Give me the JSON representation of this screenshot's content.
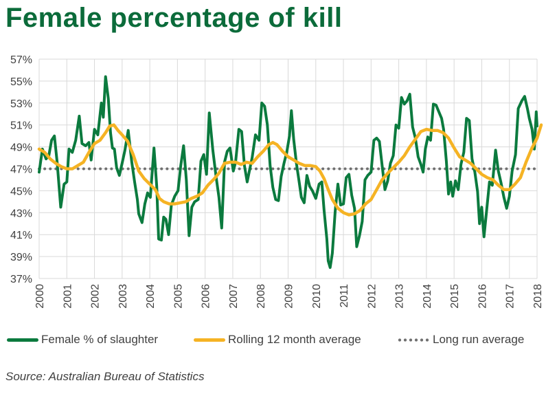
{
  "chart_data": {
    "type": "line",
    "title": "Female percentage of kill",
    "source": "Source: Australian Bureau of Statistics",
    "y_tick_labels": [
      "37%",
      "39%",
      "41%",
      "43%",
      "45%",
      "47%",
      "49%",
      "51%",
      "53%",
      "55%",
      "57%"
    ],
    "y_ticks": [
      37,
      39,
      41,
      43,
      45,
      47,
      49,
      51,
      53,
      55,
      57
    ],
    "x_tick_labels": [
      "2000",
      "2001",
      "2002",
      "2003",
      "2004",
      "2005",
      "2006",
      "2007",
      "2008",
      "2009",
      "2010",
      "2011",
      "2012",
      "2013",
      "2014",
      "2015",
      "2016",
      "2017",
      "2018"
    ],
    "x_ticks": [
      2000,
      2001,
      2002,
      2003,
      2004,
      2005,
      2006,
      2007,
      2008,
      2009,
      2010,
      2011,
      2012,
      2013,
      2014,
      2015,
      2016,
      2017,
      2018
    ],
    "ylim": [
      37,
      57
    ],
    "xlim": [
      2000,
      2018
    ],
    "grid": true,
    "legend_position": "bottom",
    "series": [
      {
        "name": "Female % of slaughter",
        "color": "#0b7a3e",
        "style": "solid",
        "points": [
          [
            2000.0,
            46.7
          ],
          [
            2000.12,
            48.8
          ],
          [
            2000.25,
            47.9
          ],
          [
            2000.35,
            48.2
          ],
          [
            2000.45,
            49.6
          ],
          [
            2000.55,
            50.0
          ],
          [
            2000.65,
            47.6
          ],
          [
            2000.78,
            43.5
          ],
          [
            2000.9,
            45.6
          ],
          [
            2001.0,
            45.8
          ],
          [
            2001.08,
            48.8
          ],
          [
            2001.2,
            48.5
          ],
          [
            2001.32,
            49.6
          ],
          [
            2001.45,
            51.8
          ],
          [
            2001.55,
            49.3
          ],
          [
            2001.68,
            49.1
          ],
          [
            2001.8,
            49.4
          ],
          [
            2001.88,
            47.8
          ],
          [
            2002.0,
            50.6
          ],
          [
            2002.12,
            50.1
          ],
          [
            2002.25,
            53.0
          ],
          [
            2002.32,
            51.7
          ],
          [
            2002.4,
            55.4
          ],
          [
            2002.5,
            53.4
          ],
          [
            2002.58,
            50.3
          ],
          [
            2002.65,
            48.9
          ],
          [
            2002.72,
            48.8
          ],
          [
            2002.8,
            47.1
          ],
          [
            2002.9,
            46.4
          ],
          [
            2003.0,
            47.5
          ],
          [
            2003.1,
            48.7
          ],
          [
            2003.22,
            50.5
          ],
          [
            2003.35,
            47.6
          ],
          [
            2003.45,
            45.8
          ],
          [
            2003.55,
            44.2
          ],
          [
            2003.6,
            42.9
          ],
          [
            2003.72,
            42.1
          ],
          [
            2003.82,
            43.8
          ],
          [
            2003.92,
            44.8
          ],
          [
            2004.02,
            44.4
          ],
          [
            2004.15,
            48.9
          ],
          [
            2004.25,
            45.4
          ],
          [
            2004.32,
            40.6
          ],
          [
            2004.42,
            40.5
          ],
          [
            2004.5,
            42.6
          ],
          [
            2004.58,
            42.4
          ],
          [
            2004.68,
            41.0
          ],
          [
            2004.78,
            43.7
          ],
          [
            2004.9,
            44.5
          ],
          [
            2005.02,
            45.0
          ],
          [
            2005.12,
            47.3
          ],
          [
            2005.22,
            49.1
          ],
          [
            2005.32,
            46.0
          ],
          [
            2005.42,
            40.9
          ],
          [
            2005.52,
            43.5
          ],
          [
            2005.62,
            44.0
          ],
          [
            2005.75,
            44.2
          ],
          [
            2005.85,
            47.7
          ],
          [
            2005.95,
            48.3
          ],
          [
            2006.05,
            46.5
          ],
          [
            2006.15,
            52.1
          ],
          [
            2006.28,
            48.7
          ],
          [
            2006.4,
            46.2
          ],
          [
            2006.5,
            44.4
          ],
          [
            2006.6,
            41.6
          ],
          [
            2006.7,
            47.6
          ],
          [
            2006.8,
            48.6
          ],
          [
            2006.9,
            48.9
          ],
          [
            2007.02,
            46.8
          ],
          [
            2007.1,
            47.6
          ],
          [
            2007.22,
            50.6
          ],
          [
            2007.32,
            50.4
          ],
          [
            2007.42,
            47.3
          ],
          [
            2007.52,
            45.8
          ],
          [
            2007.6,
            46.8
          ],
          [
            2007.7,
            48.0
          ],
          [
            2007.82,
            50.1
          ],
          [
            2007.95,
            49.6
          ],
          [
            2008.05,
            53.0
          ],
          [
            2008.15,
            52.7
          ],
          [
            2008.25,
            51.0
          ],
          [
            2008.35,
            47.3
          ],
          [
            2008.45,
            45.3
          ],
          [
            2008.55,
            44.2
          ],
          [
            2008.65,
            44.1
          ],
          [
            2008.75,
            46.3
          ],
          [
            2008.85,
            47.5
          ],
          [
            2008.95,
            48.5
          ],
          [
            2009.05,
            50.0
          ],
          [
            2009.12,
            52.3
          ],
          [
            2009.2,
            49.7
          ],
          [
            2009.3,
            47.5
          ],
          [
            2009.4,
            45.8
          ],
          [
            2009.48,
            44.4
          ],
          [
            2009.58,
            43.9
          ],
          [
            2009.68,
            46.4
          ],
          [
            2009.78,
            45.4
          ],
          [
            2009.88,
            45.0
          ],
          [
            2010.0,
            44.3
          ],
          [
            2010.12,
            45.6
          ],
          [
            2010.22,
            45.8
          ],
          [
            2010.3,
            43.2
          ],
          [
            2010.4,
            40.6
          ],
          [
            2010.45,
            38.6
          ],
          [
            2010.52,
            38.0
          ],
          [
            2010.6,
            39.3
          ],
          [
            2010.7,
            43.1
          ],
          [
            2010.8,
            45.6
          ],
          [
            2010.9,
            43.7
          ],
          [
            2011.0,
            43.8
          ],
          [
            2011.1,
            46.2
          ],
          [
            2011.2,
            46.5
          ],
          [
            2011.3,
            44.6
          ],
          [
            2011.4,
            43.4
          ],
          [
            2011.48,
            39.9
          ],
          [
            2011.58,
            40.9
          ],
          [
            2011.68,
            42.2
          ],
          [
            2011.78,
            46.0
          ],
          [
            2011.88,
            46.4
          ],
          [
            2012.0,
            46.7
          ],
          [
            2012.1,
            49.6
          ],
          [
            2012.2,
            49.8
          ],
          [
            2012.3,
            49.5
          ],
          [
            2012.4,
            47.3
          ],
          [
            2012.5,
            45.1
          ],
          [
            2012.6,
            45.9
          ],
          [
            2012.7,
            47.5
          ],
          [
            2012.8,
            48.2
          ],
          [
            2012.9,
            51.0
          ],
          [
            2013.0,
            50.7
          ],
          [
            2013.1,
            53.5
          ],
          [
            2013.2,
            52.9
          ],
          [
            2013.3,
            53.2
          ],
          [
            2013.4,
            53.8
          ],
          [
            2013.5,
            50.8
          ],
          [
            2013.6,
            49.8
          ],
          [
            2013.7,
            48.1
          ],
          [
            2013.8,
            47.4
          ],
          [
            2013.88,
            46.7
          ],
          [
            2013.96,
            48.8
          ],
          [
            2014.05,
            49.9
          ],
          [
            2014.15,
            49.6
          ],
          [
            2014.25,
            52.9
          ],
          [
            2014.35,
            52.8
          ],
          [
            2014.45,
            52.2
          ],
          [
            2014.55,
            51.6
          ],
          [
            2014.62,
            50.6
          ],
          [
            2014.72,
            47.7
          ],
          [
            2014.8,
            44.7
          ],
          [
            2014.88,
            45.8
          ],
          [
            2014.95,
            44.5
          ],
          [
            2015.05,
            45.9
          ],
          [
            2015.15,
            45.1
          ],
          [
            2015.25,
            47.4
          ],
          [
            2015.35,
            48.5
          ],
          [
            2015.45,
            51.6
          ],
          [
            2015.55,
            51.4
          ],
          [
            2015.65,
            47.9
          ],
          [
            2015.75,
            46.7
          ],
          [
            2015.85,
            44.9
          ],
          [
            2015.92,
            42.0
          ],
          [
            2016.0,
            43.5
          ],
          [
            2016.08,
            40.8
          ],
          [
            2016.18,
            43.3
          ],
          [
            2016.28,
            45.8
          ],
          [
            2016.38,
            45.5
          ],
          [
            2016.5,
            48.7
          ],
          [
            2016.6,
            46.8
          ],
          [
            2016.7,
            45.7
          ],
          [
            2016.8,
            44.4
          ],
          [
            2016.9,
            43.4
          ],
          [
            2017.0,
            44.5
          ],
          [
            2017.1,
            46.8
          ],
          [
            2017.22,
            48.3
          ],
          [
            2017.32,
            52.5
          ],
          [
            2017.45,
            53.2
          ],
          [
            2017.55,
            53.6
          ],
          [
            2017.65,
            52.5
          ],
          [
            2017.72,
            51.6
          ],
          [
            2017.82,
            50.6
          ],
          [
            2017.9,
            48.8
          ],
          [
            2017.97,
            52.2
          ],
          [
            2018.0,
            50.9
          ]
        ]
      },
      {
        "name": "Rolling 12 month average",
        "color": "#f5b324",
        "style": "solid",
        "points": [
          [
            2000.0,
            48.8
          ],
          [
            2000.2,
            48.5
          ],
          [
            2000.4,
            47.9
          ],
          [
            2000.6,
            47.5
          ],
          [
            2000.8,
            47.2
          ],
          [
            2001.0,
            47.0
          ],
          [
            2001.2,
            47.0
          ],
          [
            2001.4,
            47.3
          ],
          [
            2001.6,
            47.6
          ],
          [
            2001.8,
            48.5
          ],
          [
            2002.0,
            49.3
          ],
          [
            2002.2,
            49.6
          ],
          [
            2002.4,
            50.3
          ],
          [
            2002.55,
            50.9
          ],
          [
            2002.7,
            51.0
          ],
          [
            2002.85,
            50.5
          ],
          [
            2003.0,
            50.1
          ],
          [
            2003.2,
            49.5
          ],
          [
            2003.4,
            48.3
          ],
          [
            2003.6,
            46.8
          ],
          [
            2003.8,
            46.1
          ],
          [
            2004.0,
            45.6
          ],
          [
            2004.2,
            45.1
          ],
          [
            2004.35,
            44.3
          ],
          [
            2004.5,
            44.0
          ],
          [
            2004.7,
            43.8
          ],
          [
            2004.9,
            43.8
          ],
          [
            2005.1,
            43.9
          ],
          [
            2005.3,
            44.0
          ],
          [
            2005.5,
            44.3
          ],
          [
            2005.7,
            44.5
          ],
          [
            2005.9,
            44.8
          ],
          [
            2006.1,
            45.5
          ],
          [
            2006.3,
            46.0
          ],
          [
            2006.5,
            46.6
          ],
          [
            2006.7,
            47.5
          ],
          [
            2006.9,
            47.6
          ],
          [
            2007.1,
            47.6
          ],
          [
            2007.3,
            47.4
          ],
          [
            2007.5,
            47.6
          ],
          [
            2007.7,
            47.5
          ],
          [
            2007.9,
            48.1
          ],
          [
            2008.1,
            48.6
          ],
          [
            2008.3,
            49.2
          ],
          [
            2008.45,
            49.4
          ],
          [
            2008.6,
            49.2
          ],
          [
            2008.8,
            48.6
          ],
          [
            2009.0,
            48.1
          ],
          [
            2009.2,
            47.8
          ],
          [
            2009.4,
            47.5
          ],
          [
            2009.6,
            47.3
          ],
          [
            2009.8,
            47.3
          ],
          [
            2010.0,
            47.2
          ],
          [
            2010.15,
            46.8
          ],
          [
            2010.3,
            46.1
          ],
          [
            2010.45,
            45.1
          ],
          [
            2010.6,
            44.2
          ],
          [
            2010.8,
            43.4
          ],
          [
            2011.0,
            43.0
          ],
          [
            2011.2,
            42.8
          ],
          [
            2011.4,
            42.9
          ],
          [
            2011.6,
            43.2
          ],
          [
            2011.8,
            43.8
          ],
          [
            2012.0,
            44.2
          ],
          [
            2012.2,
            45.1
          ],
          [
            2012.4,
            46.0
          ],
          [
            2012.6,
            46.6
          ],
          [
            2012.8,
            47.1
          ],
          [
            2013.0,
            47.6
          ],
          [
            2013.2,
            48.2
          ],
          [
            2013.4,
            49.0
          ],
          [
            2013.6,
            49.7
          ],
          [
            2013.8,
            50.4
          ],
          [
            2014.0,
            50.6
          ],
          [
            2014.2,
            50.5
          ],
          [
            2014.4,
            50.5
          ],
          [
            2014.6,
            50.3
          ],
          [
            2014.8,
            49.8
          ],
          [
            2015.0,
            48.9
          ],
          [
            2015.2,
            48.1
          ],
          [
            2015.4,
            47.8
          ],
          [
            2015.6,
            47.5
          ],
          [
            2015.8,
            47.0
          ],
          [
            2016.0,
            46.5
          ],
          [
            2016.2,
            46.2
          ],
          [
            2016.4,
            46.0
          ],
          [
            2016.6,
            45.5
          ],
          [
            2016.8,
            45.1
          ],
          [
            2017.0,
            45.1
          ],
          [
            2017.2,
            45.6
          ],
          [
            2017.4,
            46.2
          ],
          [
            2017.6,
            47.6
          ],
          [
            2017.8,
            48.8
          ],
          [
            2018.0,
            49.8
          ],
          [
            2018.15,
            51.0
          ]
        ]
      },
      {
        "name": "Long run average",
        "color": "#707070",
        "style": "dotted",
        "points": [
          [
            2000.0,
            47.0
          ],
          [
            2018.0,
            47.0
          ]
        ]
      }
    ]
  }
}
